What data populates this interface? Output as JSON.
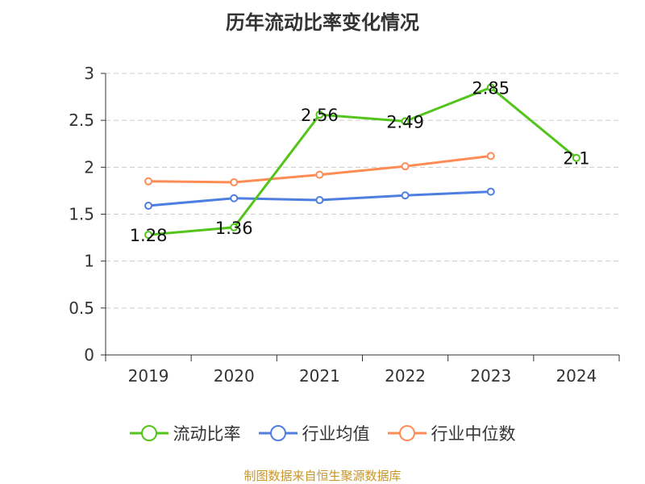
{
  "chart_data": {
    "type": "line",
    "title": "历年流动比率变化情况",
    "categories": [
      "2019",
      "2020",
      "2021",
      "2022",
      "2023",
      "2024"
    ],
    "ylim": [
      0,
      3
    ],
    "yticks": [
      "0",
      "0.5",
      "1",
      "1.5",
      "2",
      "2.5",
      "3"
    ],
    "grid": true,
    "legend_position": "bottom",
    "series": [
      {
        "name": "流动比率",
        "color": "#52c41a",
        "values": [
          1.28,
          1.36,
          2.56,
          2.49,
          2.85,
          2.1
        ],
        "labels": [
          "1.28",
          "1.36",
          "2.56",
          "2.49",
          "2.85",
          "2.1"
        ]
      },
      {
        "name": "行业均值",
        "color": "#4e7fe0",
        "values": [
          1.59,
          1.67,
          1.65,
          1.7,
          1.74,
          null
        ]
      },
      {
        "name": "行业中位数",
        "color": "#ff8c55",
        "values": [
          1.85,
          1.84,
          1.92,
          2.01,
          2.12,
          null
        ]
      }
    ]
  },
  "footer": "制图数据来自恒生聚源数据库"
}
